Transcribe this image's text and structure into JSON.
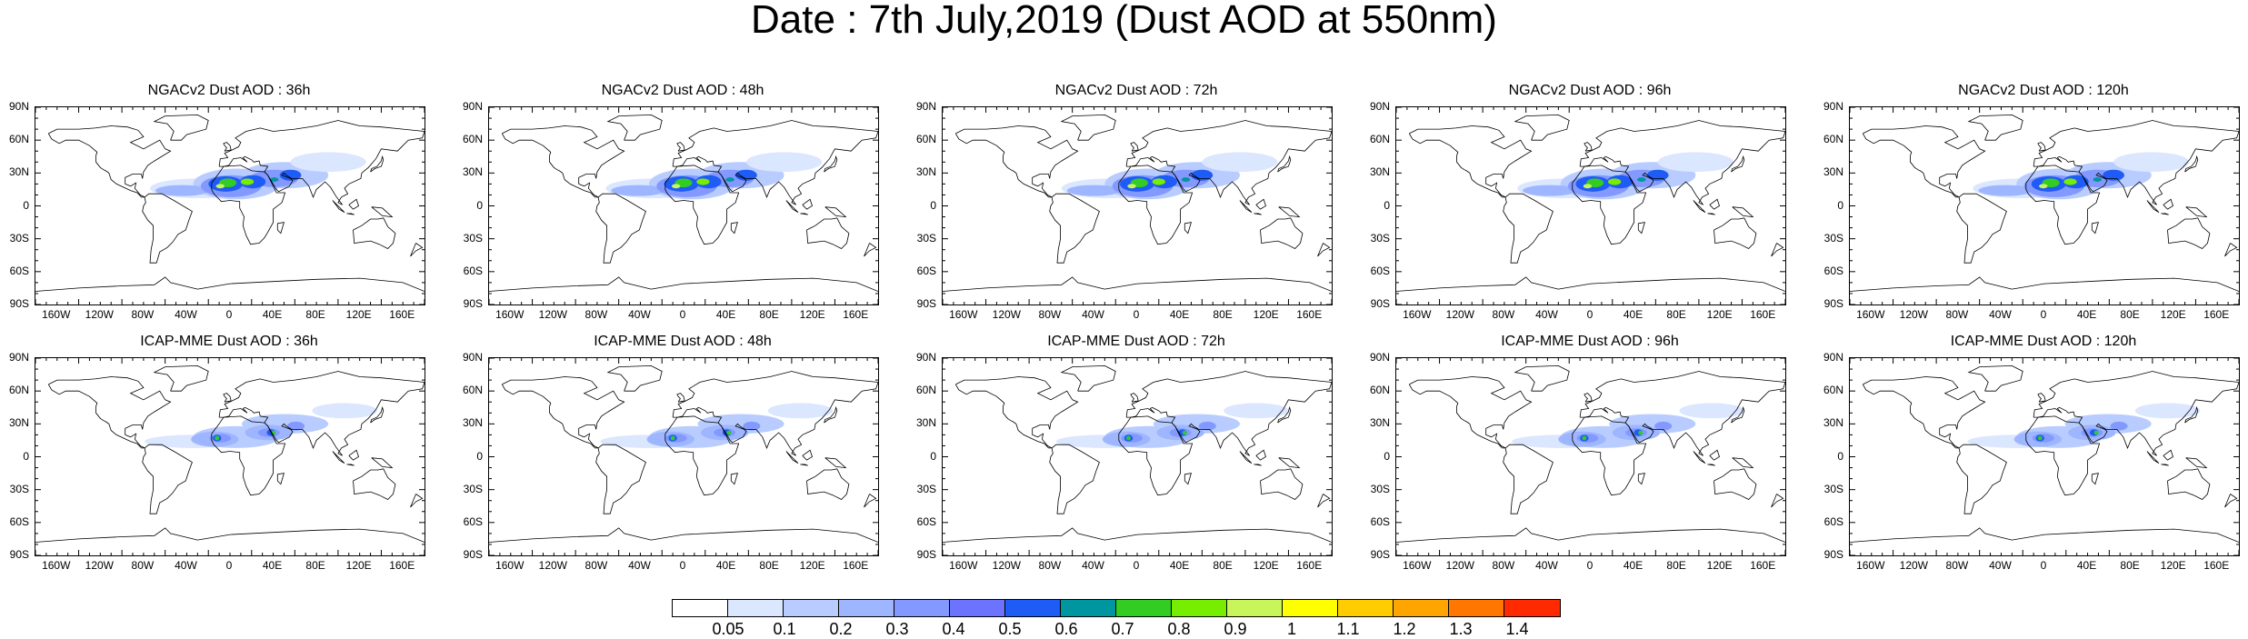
{
  "title": "Date : 7th July,2019 (Dust AOD at 550nm)",
  "lat_labels": [
    "90N",
    "60N",
    "30N",
    "0",
    "30S",
    "60S",
    "90S"
  ],
  "lon_labels": [
    "160W",
    "120W",
    "80W",
    "40W",
    "0",
    "40E",
    "80E",
    "120E",
    "160E"
  ],
  "panels": [
    {
      "title": "NGACv2 Dust AOD : 36h"
    },
    {
      "title": "NGACv2 Dust AOD : 48h"
    },
    {
      "title": "NGACv2 Dust AOD : 72h"
    },
    {
      "title": "NGACv2 Dust AOD : 96h"
    },
    {
      "title": "NGACv2 Dust AOD : 120h"
    },
    {
      "title": "ICAP-MME Dust AOD : 36h"
    },
    {
      "title": "ICAP-MME Dust AOD : 48h"
    },
    {
      "title": "ICAP-MME Dust AOD : 72h"
    },
    {
      "title": "ICAP-MME Dust AOD : 96h"
    },
    {
      "title": "ICAP-MME Dust AOD : 120h"
    }
  ],
  "colorbar": {
    "labels": [
      "0.05",
      "0.1",
      "0.2",
      "0.3",
      "0.4",
      "0.5",
      "0.6",
      "0.7",
      "0.8",
      "0.9",
      "1",
      "1.1",
      "1.2",
      "1.3",
      "1.4"
    ],
    "colors": [
      "#ffffff",
      "#dbe6ff",
      "#b9ccff",
      "#9eb6ff",
      "#8399ff",
      "#6b73ff",
      "#1e5cf5",
      "#0096a0",
      "#33cc22",
      "#77ee00",
      "#c8f55a",
      "#ffff00",
      "#ffcc00",
      "#ffa500",
      "#ff7700",
      "#ff2a00"
    ]
  }
}
